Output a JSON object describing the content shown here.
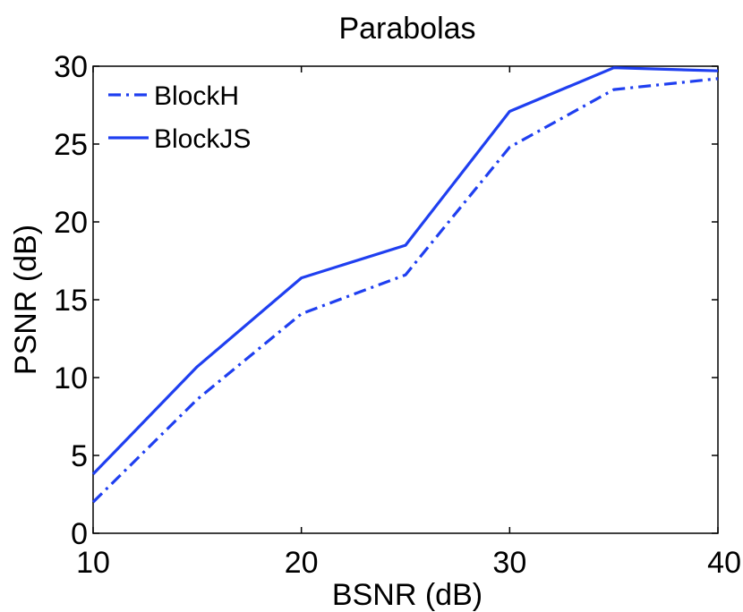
{
  "chart_data": {
    "type": "line",
    "title": "Parabolas",
    "xlabel": "BSNR (dB)",
    "ylabel": "PSNR (dB)",
    "xlim": [
      10,
      40
    ],
    "ylim": [
      0,
      30
    ],
    "xticks": [
      10,
      20,
      30,
      40
    ],
    "yticks": [
      0,
      5,
      10,
      15,
      20,
      25,
      30
    ],
    "x": [
      10,
      15,
      20,
      25,
      30,
      35,
      40
    ],
    "legend_position": "top-left",
    "series": [
      {
        "name": "BlockH",
        "style": "dash-dot",
        "color": "#1f3ff0",
        "values": [
          2.0,
          8.6,
          14.1,
          16.6,
          24.8,
          28.5,
          29.2
        ]
      },
      {
        "name": "BlockJS",
        "style": "solid",
        "color": "#1f3ff0",
        "values": [
          3.8,
          10.7,
          16.4,
          18.5,
          27.1,
          29.9,
          29.7
        ]
      }
    ]
  }
}
